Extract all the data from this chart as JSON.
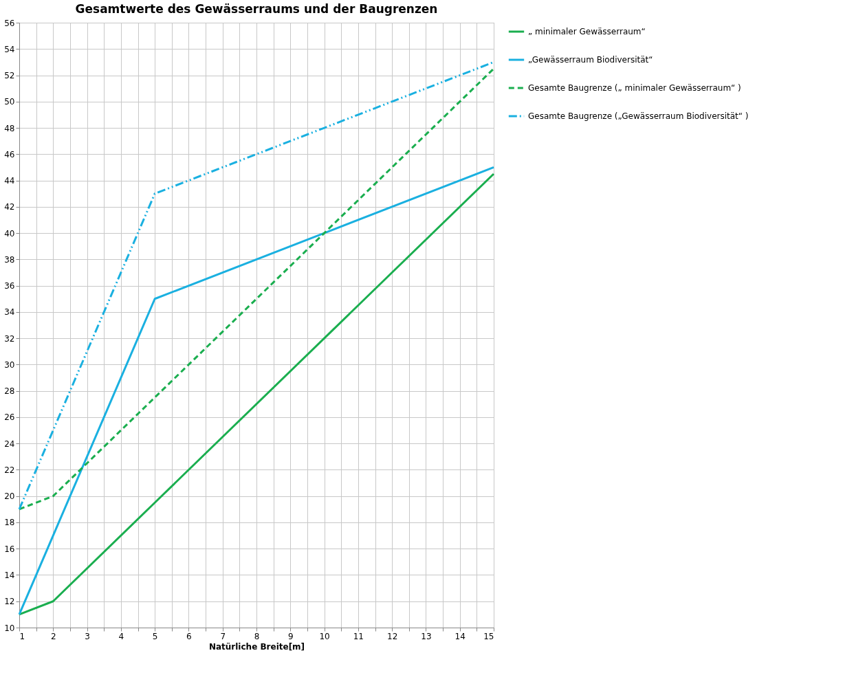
{
  "chart_data": {
    "type": "line",
    "title": "Gesamtwerte des Gewässerraums und der Baugrenzen",
    "xlabel": "Natürliche Breite[m]",
    "x": [
      1,
      2,
      5,
      10,
      15
    ],
    "series": [
      {
        "name": "„ minimaler Gewässerraum“",
        "color": "#1aae4f",
        "values": [
          11,
          12,
          19.5,
          32,
          44.5
        ],
        "line_style": "solid"
      },
      {
        "name": "„Gewässerraum Biodiversität“",
        "color": "#1ab0e0",
        "values": [
          11,
          17,
          35,
          40,
          45
        ],
        "line_style": "solid"
      },
      {
        "name": "Gesamte Baugrenze („ minimaler Gewässerraum“ )",
        "color": "#1aae4f",
        "values": [
          19,
          20,
          27.5,
          40,
          52.5
        ],
        "line_style": "dashed"
      },
      {
        "name": "Gesamte Baugrenze („Gewässerraum Biodiversität“ )",
        "color": "#1ab0e0",
        "values": [
          19,
          25,
          43,
          48,
          53
        ],
        "line_style": "dashdot"
      }
    ],
    "xlim": [
      1,
      15
    ],
    "ylim": [
      10,
      56
    ],
    "xticks": [
      1,
      {
        "value": 1.5,
        "label": null
      },
      2,
      {
        "value": 2.5,
        "label": null
      },
      3,
      {
        "value": 3.5,
        "label": null
      },
      4,
      {
        "value": 4.5,
        "label": null
      },
      5,
      {
        "value": 5.5,
        "label": null
      },
      6,
      {
        "value": 6.5,
        "label": null
      },
      7,
      {
        "value": 7.5,
        "label": null
      },
      8,
      {
        "value": 8.5,
        "label": null
      },
      9,
      {
        "value": 9.5,
        "label": null
      },
      10,
      {
        "value": 10.5,
        "label": null
      },
      11,
      {
        "value": 11.5,
        "label": null
      },
      12,
      {
        "value": 12.5,
        "label": null
      },
      13,
      {
        "value": 13.5,
        "label": null
      },
      14,
      {
        "value": 14.5,
        "label": null
      },
      15
    ],
    "yticks": [
      10,
      12,
      14,
      16,
      18,
      20,
      22,
      24,
      26,
      28,
      30,
      32,
      34,
      36,
      38,
      40,
      42,
      44,
      46,
      48,
      50,
      52,
      54,
      56
    ],
    "grid": true,
    "legend": "right",
    "marker": "none"
  }
}
